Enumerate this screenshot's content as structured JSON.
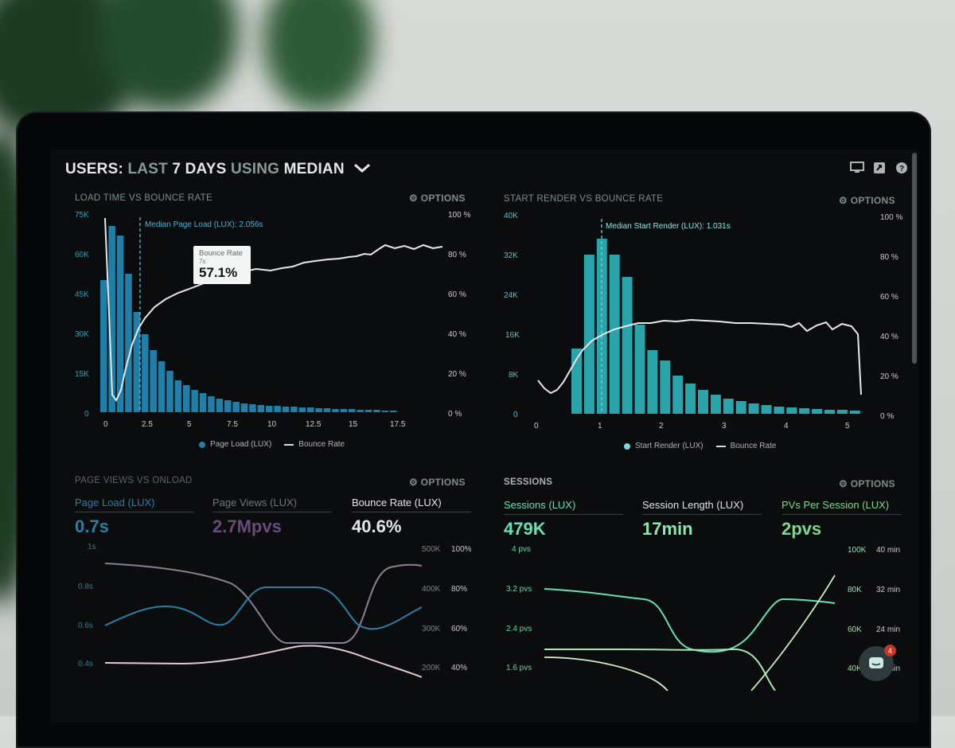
{
  "header": {
    "title_users": "USERS:",
    "title_last": "LAST",
    "title_days": "7 DAYS",
    "title_using": "USING",
    "title_median": "MEDIAN",
    "chevron_icon": "chevron-down-icon",
    "icons": [
      "monitor-icon",
      "share-icon",
      "help-icon"
    ]
  },
  "panel1": {
    "title": "LOAD TIME VS BOUNCE RATE",
    "options": "⚙ OPTIONS",
    "median_label": "Median Page Load (LUX): 2.056s",
    "y_left": [
      "75K",
      "60K",
      "45K",
      "30K",
      "15K",
      "0"
    ],
    "y_right": [
      "100 %",
      "80 %",
      "60 %",
      "40 %",
      "20 %",
      "0 %"
    ],
    "x_ticks": [
      "0",
      "2.5",
      "5",
      "7.5",
      "10",
      "12.5",
      "15",
      "17.5"
    ],
    "legend_bar": "Page Load (LUX)",
    "legend_line": "Bounce Rate",
    "tooltip_label": "Bounce Rate",
    "tooltip_sub": "7s",
    "tooltip_value": "57.1%",
    "bar_color": "#1f7fa8",
    "line_color": "#e6e8e9"
  },
  "panel2": {
    "title": "START RENDER VS BOUNCE RATE",
    "options": "⚙ OPTIONS",
    "median_label": "Median Start Render (LUX): 1.031s",
    "y_left": [
      "40K",
      "32K",
      "24K",
      "16K",
      "8K",
      "0"
    ],
    "y_right": [
      "100 %",
      "80 %",
      "60 %",
      "40 %",
      "20 %",
      "0 %"
    ],
    "x_ticks": [
      "0",
      "1",
      "2",
      "3",
      "4",
      "5"
    ],
    "legend_bar": "Start Render (LUX)",
    "legend_line": "Bounce Rate",
    "bar_color": "#2aa4ab"
  },
  "panel3": {
    "title": "PAGE VIEWS VS ONLOAD",
    "options": "⚙ OPTIONS",
    "metrics": [
      {
        "label": "Page Load (LUX)",
        "value": "0.7s",
        "color": "#2b7fa6"
      },
      {
        "label": "Page Views (LUX)",
        "value": "2.7Mpvs",
        "color": "#6b4a7d"
      },
      {
        "label": "Bounce Rate (LUX)",
        "value": "40.6%",
        "color": "#e4e7e8"
      }
    ],
    "y_left": [
      "1s",
      "0.8s",
      "0.6s",
      "0.4s"
    ],
    "y_mid": [
      "500K",
      "400K",
      "300K",
      "200K"
    ],
    "y_right": [
      "100%",
      "80%",
      "60%",
      "40%"
    ]
  },
  "panel4": {
    "title": "SESSIONS",
    "options": "⚙ OPTIONS",
    "metrics": [
      {
        "label": "Sessions (LUX)",
        "value": "479K",
        "color": "#66e0b8"
      },
      {
        "label": "Session Length (LUX)",
        "value": "17min",
        "color": "#8fe6b0"
      },
      {
        "label": "PVs Per Session (LUX)",
        "value": "2pvs",
        "color": "#7fd88e"
      }
    ],
    "y_left": [
      "4 pvs",
      "3.2 pvs",
      "2.4 pvs",
      "1.6 pvs"
    ],
    "y_mid": [
      "100K",
      "80K",
      "60K",
      "40K"
    ],
    "y_right": [
      "40 min",
      "32 min",
      "24 min",
      "16 min"
    ]
  },
  "chat": {
    "badge": "4",
    "icon": "chat-icon"
  }
}
